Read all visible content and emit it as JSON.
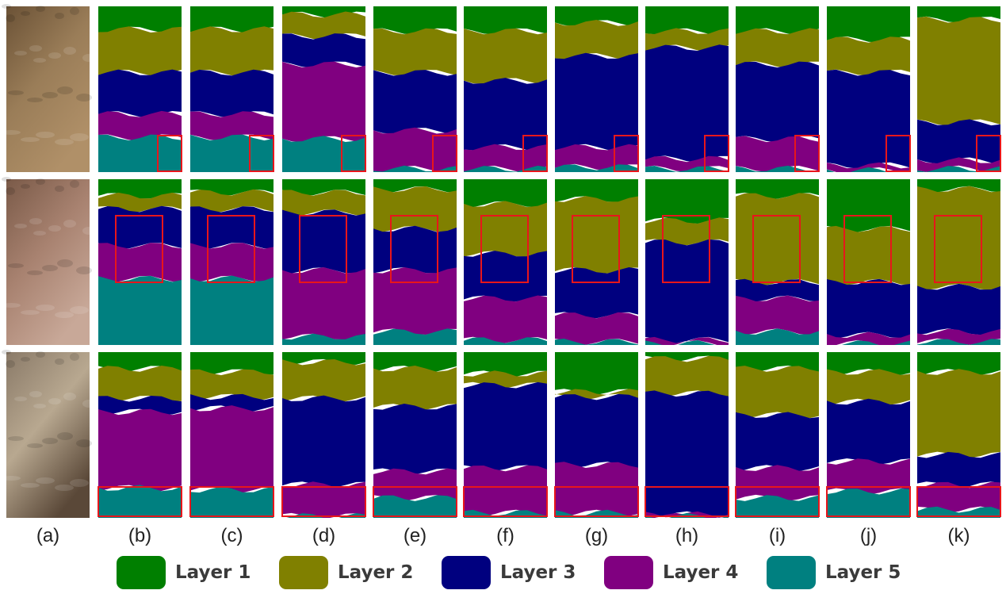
{
  "columns": [
    {
      "label": "(a)",
      "kind": "photo"
    },
    {
      "label": "(b)",
      "kind": "map"
    },
    {
      "label": "(c)",
      "kind": "map"
    },
    {
      "label": "(d)",
      "kind": "map"
    },
    {
      "label": "(e)",
      "kind": "map"
    },
    {
      "label": "(f)",
      "kind": "map"
    },
    {
      "label": "(g)",
      "kind": "map"
    },
    {
      "label": "(h)",
      "kind": "map"
    },
    {
      "label": "(i)",
      "kind": "map"
    },
    {
      "label": "(j)",
      "kind": "map"
    },
    {
      "label": "(k)",
      "kind": "map"
    }
  ],
  "rows": [
    {
      "photo_colors": [
        "#6b5236",
        "#9a7d58",
        "#b09068"
      ]
    },
    {
      "photo_colors": [
        "#7a5a48",
        "#a88270",
        "#c8a898"
      ]
    },
    {
      "photo_colors": [
        "#8a7a68",
        "#b8a890",
        "#5a4838"
      ]
    }
  ],
  "legend": [
    {
      "label": "Layer 1",
      "color": "#007f00"
    },
    {
      "label": "Layer 2",
      "color": "#808000"
    },
    {
      "label": "Layer 3",
      "color": "#00007f"
    },
    {
      "label": "Layer 4",
      "color": "#800080"
    },
    {
      "label": "Layer 5",
      "color": "#008080"
    }
  ],
  "highlight_color": "#e8161b",
  "maps": [
    [
      {
        "bands": [
          0.14,
          0.4,
          0.65,
          0.79
        ],
        "box": "br"
      },
      {
        "bands": [
          0.14,
          0.4,
          0.65,
          0.79
        ],
        "box": "br"
      },
      {
        "bands": [
          0.05,
          0.18,
          0.35,
          0.8
        ],
        "box": "br"
      },
      {
        "bands": [
          0.15,
          0.4,
          0.75,
          0.98
        ],
        "box": "br"
      },
      {
        "bands": [
          0.15,
          0.45,
          0.85,
          0.98
        ],
        "box": "br"
      },
      {
        "bands": [
          0.1,
          0.3,
          0.85,
          0.97
        ],
        "box": "br"
      },
      {
        "bands": [
          0.15,
          0.25,
          0.92,
          0.98
        ],
        "box": "br"
      },
      {
        "bands": [
          0.15,
          0.35,
          0.8,
          0.98
        ],
        "box": "br"
      },
      {
        "bands": [
          0.2,
          0.4,
          0.96,
          0.99
        ],
        "box": "br"
      },
      {
        "bands": [
          0.08,
          0.7,
          0.93,
          0.98
        ],
        "box": "br"
      }
    ],
    [
      {
        "bands": [
          0.1,
          0.18,
          0.4,
          0.6
        ],
        "box": "mid"
      },
      {
        "bands": [
          0.08,
          0.18,
          0.4,
          0.6
        ],
        "box": "mid"
      },
      {
        "bands": [
          0.08,
          0.2,
          0.55,
          0.95
        ],
        "box": "mid"
      },
      {
        "bands": [
          0.06,
          0.3,
          0.55,
          0.92
        ],
        "box": "mid"
      },
      {
        "bands": [
          0.15,
          0.45,
          0.72,
          0.97
        ],
        "box": "mid"
      },
      {
        "bands": [
          0.12,
          0.55,
          0.82,
          0.98
        ],
        "box": "mid"
      },
      {
        "bands": [
          0.25,
          0.38,
          0.97,
          0.99
        ],
        "box": "mid"
      },
      {
        "bands": [
          0.1,
          0.62,
          0.72,
          0.92
        ],
        "box": "mid"
      },
      {
        "bands": [
          0.3,
          0.62,
          0.94,
          0.99
        ],
        "box": "mid"
      },
      {
        "bands": [
          0.06,
          0.65,
          0.92,
          0.98
        ],
        "box": "mid"
      }
    ],
    [
      {
        "bands": [
          0.1,
          0.28,
          0.36,
          0.82
        ],
        "box": "bottom"
      },
      {
        "bands": [
          0.12,
          0.27,
          0.34,
          0.83
        ],
        "box": "bottom"
      },
      {
        "bands": [
          0.06,
          0.28,
          0.8,
          0.99
        ],
        "box": "bottom"
      },
      {
        "bands": [
          0.1,
          0.33,
          0.72,
          0.88
        ],
        "box": "bottom"
      },
      {
        "bands": [
          0.13,
          0.2,
          0.7,
          0.97
        ],
        "box": "bottom"
      },
      {
        "bands": [
          0.24,
          0.27,
          0.68,
          0.97
        ],
        "box": "bottom"
      },
      {
        "bands": [
          0.04,
          0.25,
          0.98,
          0.99
        ],
        "box": "bottom"
      },
      {
        "bands": [
          0.1,
          0.38,
          0.7,
          0.88
        ],
        "box": "bottom"
      },
      {
        "bands": [
          0.12,
          0.3,
          0.66,
          0.84
        ],
        "box": "bottom"
      },
      {
        "bands": [
          0.12,
          0.62,
          0.8,
          0.95
        ],
        "box": "bottom"
      }
    ]
  ]
}
